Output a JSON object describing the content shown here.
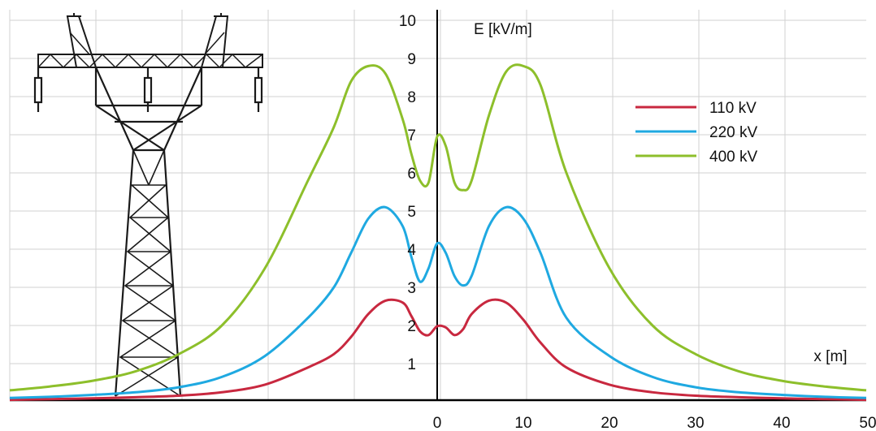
{
  "chart_data": {
    "type": "line",
    "title": "",
    "xlabel": "x [m]",
    "ylabel": "E [kV/m]",
    "xlim": [
      -50,
      50
    ],
    "ylim": [
      0,
      10
    ],
    "x_ticks": [
      0,
      10,
      20,
      30,
      40,
      50
    ],
    "y_ticks": [
      1,
      2,
      3,
      4,
      5,
      6,
      7,
      8,
      9,
      10
    ],
    "grid": true,
    "legend_position": "top-right",
    "colors": {
      "110 kV": "#c8283f",
      "220 kV": "#1fa9e1",
      "400 kV": "#8dbf2b",
      "axis": "#000000",
      "grid": "#d2d2d2",
      "tower": "#1a1a1a"
    },
    "x": [
      -50,
      -45,
      -40,
      -35,
      -30,
      -25,
      -20,
      -15,
      -12,
      -10,
      -8,
      -6,
      -4,
      -3,
      -2,
      -1,
      0,
      1,
      2,
      3,
      4,
      6,
      8,
      10,
      12,
      15,
      20,
      25,
      30,
      35,
      40,
      45,
      50
    ],
    "series": [
      {
        "name": "110 kV",
        "values": [
          0.05,
          0.07,
          0.09,
          0.12,
          0.16,
          0.25,
          0.45,
          0.9,
          1.25,
          1.7,
          2.3,
          2.65,
          2.6,
          2.25,
          1.85,
          1.75,
          1.98,
          1.95,
          1.75,
          1.9,
          2.3,
          2.65,
          2.6,
          2.15,
          1.55,
          0.9,
          0.45,
          0.25,
          0.16,
          0.12,
          0.09,
          0.07,
          0.05
        ]
      },
      {
        "name": "220 kV",
        "values": [
          0.1,
          0.13,
          0.18,
          0.25,
          0.38,
          0.65,
          1.2,
          2.2,
          3.0,
          3.9,
          4.8,
          5.1,
          4.6,
          3.8,
          3.15,
          3.5,
          4.15,
          3.9,
          3.3,
          3.05,
          3.3,
          4.6,
          5.1,
          4.8,
          3.9,
          2.2,
          1.2,
          0.65,
          0.38,
          0.25,
          0.18,
          0.13,
          0.1
        ]
      },
      {
        "name": "400 kV",
        "values": [
          0.3,
          0.4,
          0.55,
          0.8,
          1.25,
          2.0,
          3.5,
          5.8,
          7.2,
          8.4,
          8.8,
          8.6,
          7.4,
          6.5,
          5.8,
          5.75,
          6.95,
          6.7,
          5.75,
          5.55,
          5.8,
          7.5,
          8.65,
          8.8,
          8.3,
          6.0,
          3.5,
          2.0,
          1.25,
          0.8,
          0.55,
          0.4,
          0.3
        ]
      }
    ]
  }
}
